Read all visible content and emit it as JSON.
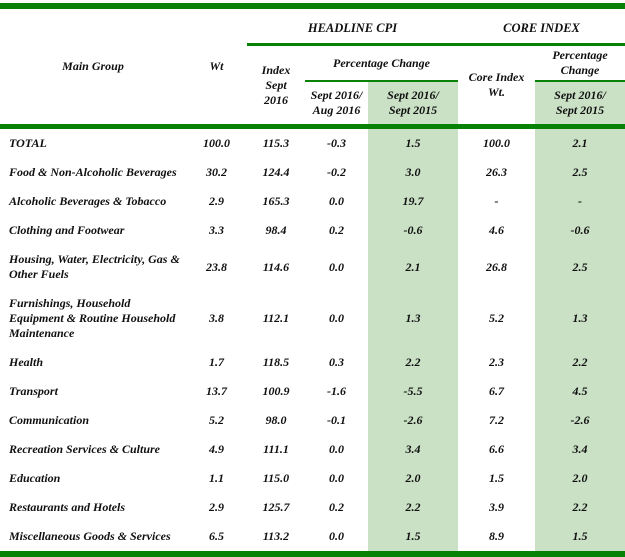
{
  "colors": {
    "line_green": "#078207",
    "highlight_green": "#cae1c6",
    "text": "#101010"
  },
  "table": {
    "headers": {
      "main_group": "Main Group",
      "wt": "Wt",
      "headline_section": "HEADLINE CPI",
      "core_section": "CORE INDEX",
      "index_sept_2016": "Index\nSept\n2016",
      "pct_change": "Percentage Change",
      "pct_change_2line": "Percentage\nChange",
      "mom": "Sept 2016/\nAug 2016",
      "headline_yoy": "Sept 2016/\nSept 2015",
      "core_index_wt": "Core Index\nWt.",
      "core_yoy": "Sept 2016/\nSept 2015"
    },
    "rows": [
      {
        "label": "TOTAL",
        "wt": "100.0",
        "index": "115.3",
        "mom": "-0.3",
        "yoy": "1.5",
        "core_wt": "100.0",
        "core_yoy": "2.1"
      },
      {
        "label": "Food & Non-Alcoholic Beverages",
        "wt": "30.2",
        "index": "124.4",
        "mom": "-0.2",
        "yoy": "3.0",
        "core_wt": "26.3",
        "core_yoy": "2.5"
      },
      {
        "label": "Alcoholic Beverages & Tobacco",
        "wt": "2.9",
        "index": "165.3",
        "mom": "0.0",
        "yoy": "19.7",
        "core_wt": "-",
        "core_yoy": "-"
      },
      {
        "label": "Clothing and Footwear",
        "wt": "3.3",
        "index": "98.4",
        "mom": "0.2",
        "yoy": "-0.6",
        "core_wt": "4.6",
        "core_yoy": "-0.6"
      },
      {
        "label": "Housing, Water, Electricity, Gas & Other Fuels",
        "wt": "23.8",
        "index": "114.6",
        "mom": "0.0",
        "yoy": "2.1",
        "core_wt": "26.8",
        "core_yoy": "2.5"
      },
      {
        "label": "Furnishings, Household Equipment  & Routine Household Maintenance",
        "wt": "3.8",
        "index": "112.1",
        "mom": "0.0",
        "yoy": "1.3",
        "core_wt": "5.2",
        "core_yoy": "1.3"
      },
      {
        "label": "Health",
        "wt": "1.7",
        "index": "118.5",
        "mom": "0.3",
        "yoy": "2.2",
        "core_wt": "2.3",
        "core_yoy": "2.2"
      },
      {
        "label": "Transport",
        "wt": "13.7",
        "index": "100.9",
        "mom": "-1.6",
        "yoy": "-5.5",
        "core_wt": "6.7",
        "core_yoy": "4.5"
      },
      {
        "label": "Communication",
        "wt": "5.2",
        "index": "98.0",
        "mom": "-0.1",
        "yoy": "-2.6",
        "core_wt": "7.2",
        "core_yoy": "-2.6"
      },
      {
        "label": "Recreation Services & Culture",
        "wt": "4.9",
        "index": "111.1",
        "mom": "0.0",
        "yoy": "3.4",
        "core_wt": "6.6",
        "core_yoy": "3.4"
      },
      {
        "label": "Education",
        "wt": "1.1",
        "index": "115.0",
        "mom": "0.0",
        "yoy": "2.0",
        "core_wt": "1.5",
        "core_yoy": "2.0"
      },
      {
        "label": "Restaurants and Hotels",
        "wt": "2.9",
        "index": "125.7",
        "mom": "0.2",
        "yoy": "2.2",
        "core_wt": "3.9",
        "core_yoy": "2.2"
      },
      {
        "label": "Miscellaneous Goods & Services",
        "wt": "6.5",
        "index": "113.2",
        "mom": "0.0",
        "yoy": "1.5",
        "core_wt": "8.9",
        "core_yoy": "1.5"
      }
    ]
  }
}
